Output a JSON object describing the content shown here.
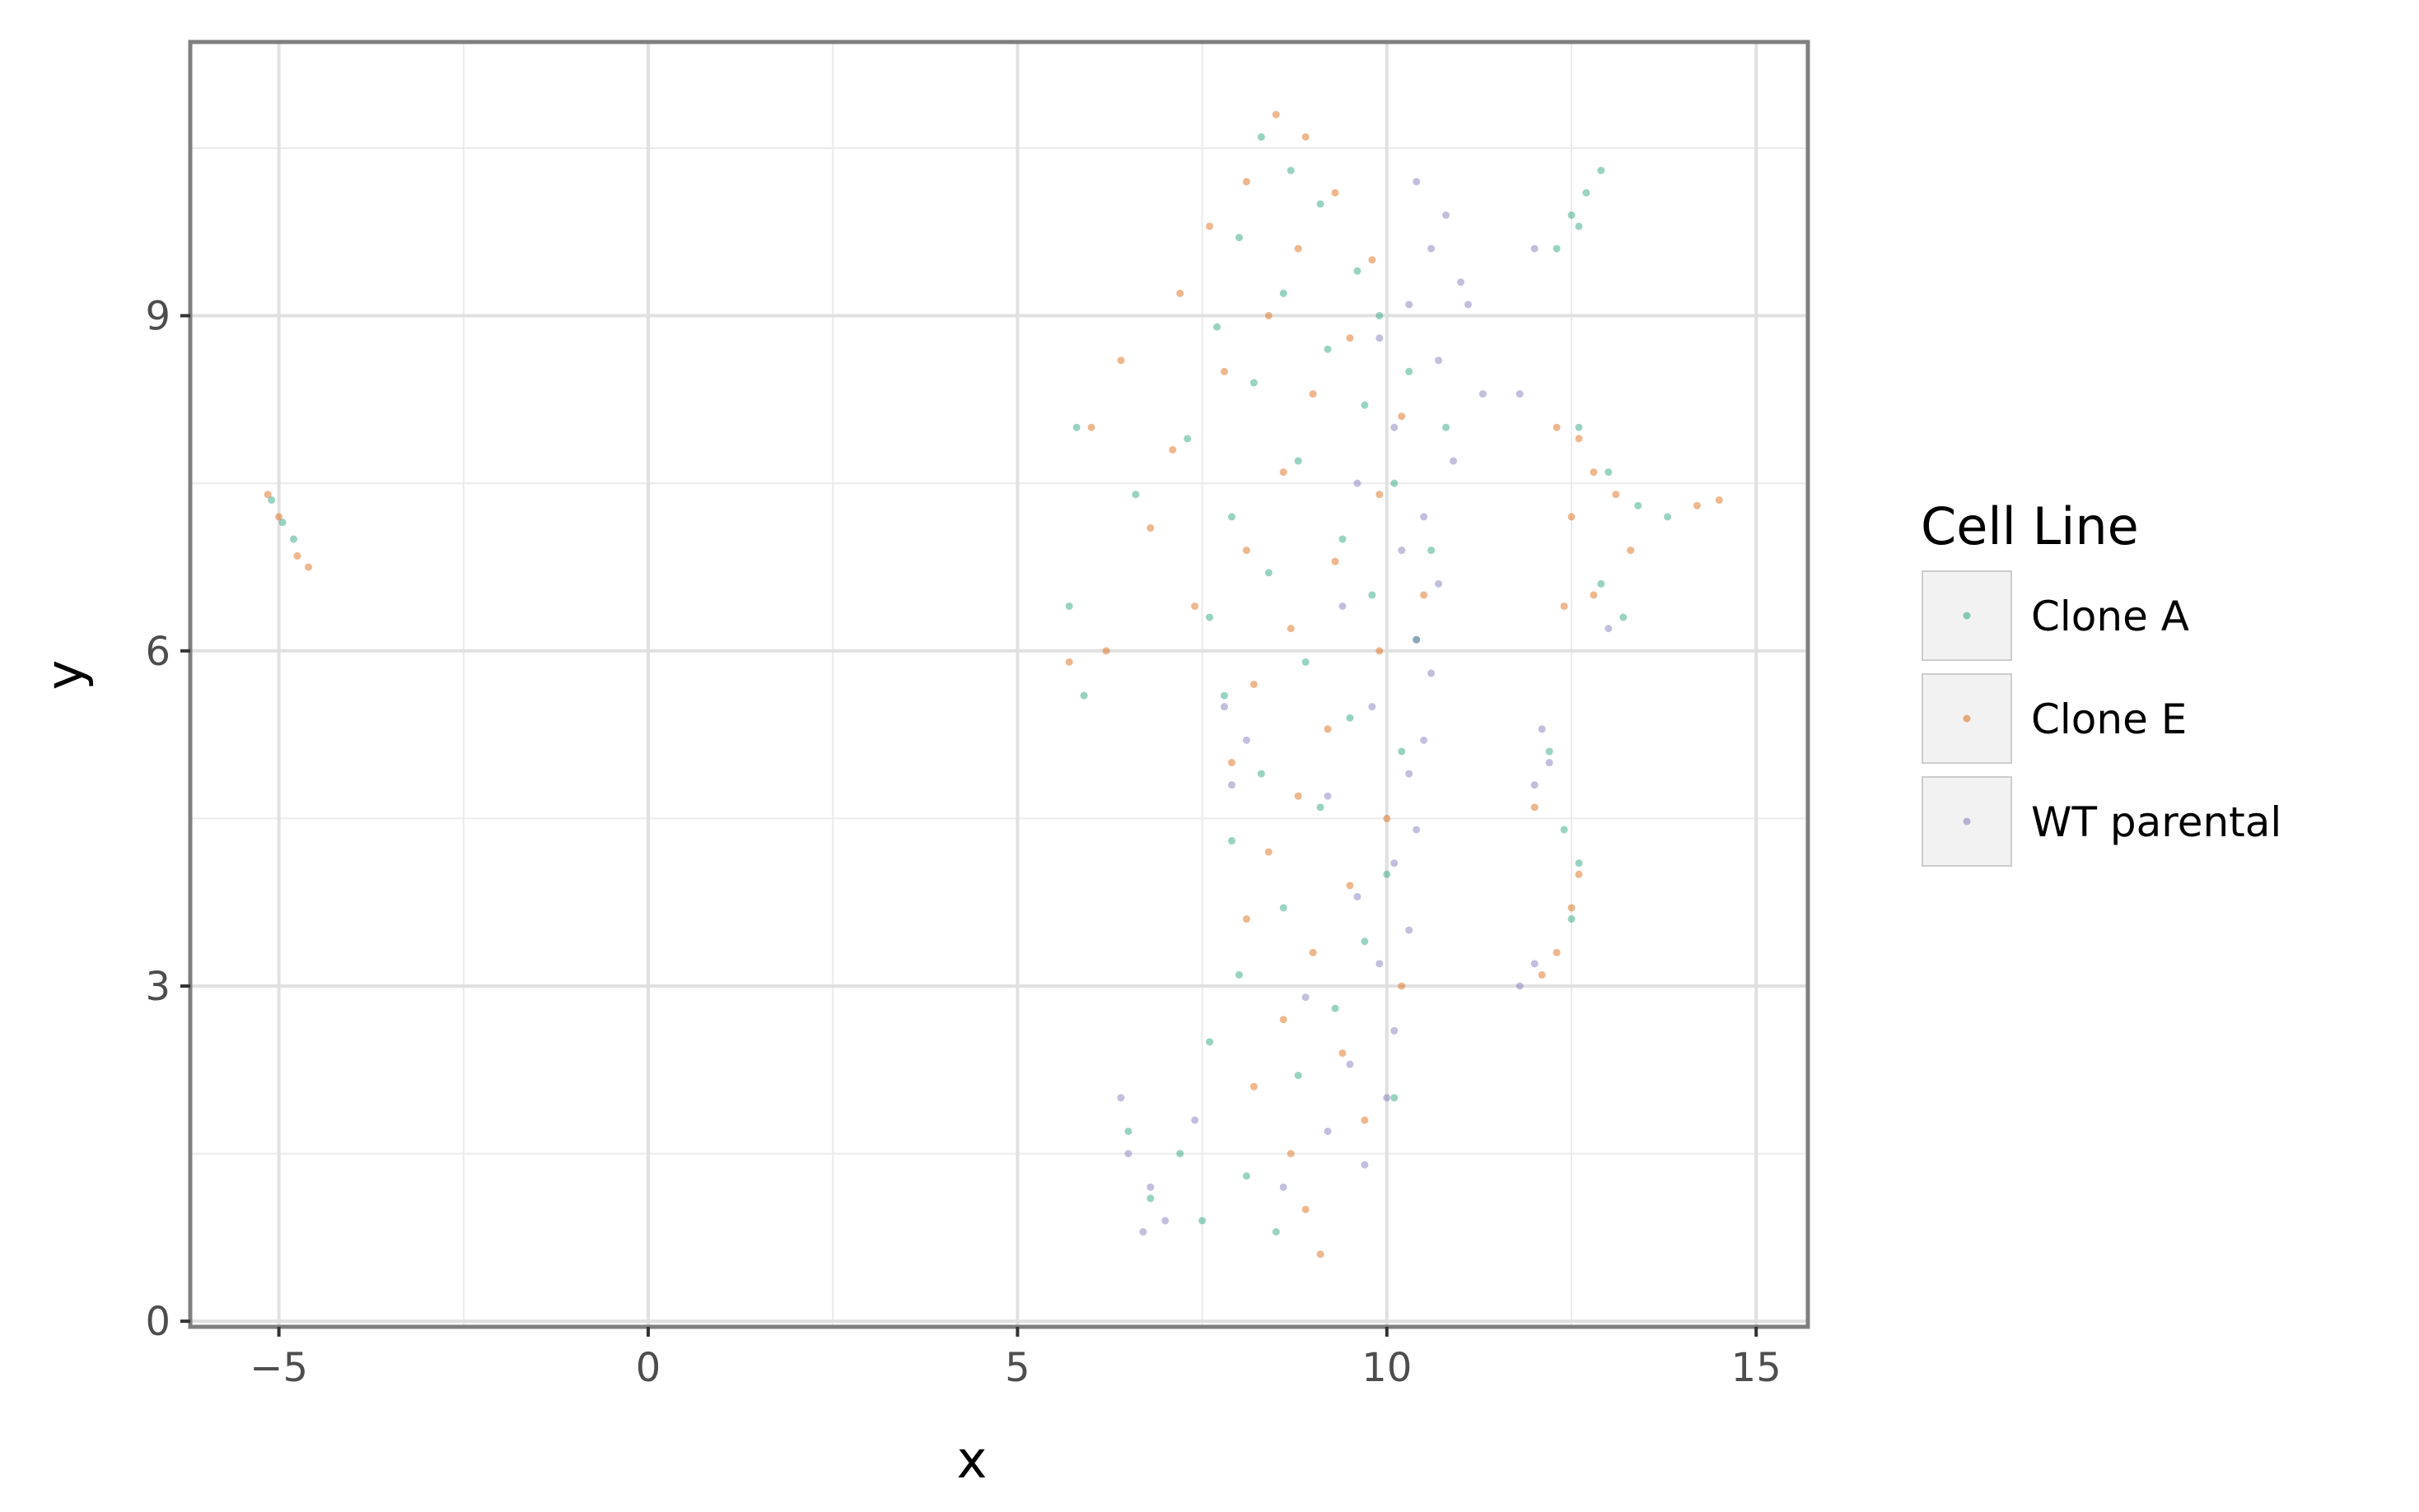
{
  "chart_data": {
    "type": "scatter",
    "title": "",
    "xlabel": "x",
    "ylabel": "y",
    "xlim": [
      -6.2,
      15.7
    ],
    "ylim": [
      -0.05,
      11.45
    ],
    "x_ticks": [
      -5,
      0,
      5,
      10,
      15
    ],
    "x_tick_labels": [
      "−5",
      "0",
      "5",
      "10",
      "15"
    ],
    "y_ticks": [
      0,
      3,
      6,
      9
    ],
    "y_tick_labels": [
      "0",
      "3",
      "6",
      "9"
    ],
    "grid": true,
    "legend": {
      "title": "Cell Line",
      "position": "right",
      "entries": [
        "Clone A",
        "Clone E",
        "WT parental"
      ]
    },
    "series": [
      {
        "name": "Clone A",
        "color": "#1b9e77",
        "points": [
          [
            -5.1,
            7.35
          ],
          [
            -4.95,
            7.15
          ],
          [
            -4.8,
            7.0
          ],
          [
            8.3,
            10.6
          ],
          [
            8.7,
            10.3
          ],
          [
            9.1,
            10.0
          ],
          [
            8.0,
            9.7
          ],
          [
            9.6,
            9.4
          ],
          [
            8.6,
            9.2
          ],
          [
            9.9,
            9.0
          ],
          [
            7.7,
            8.9
          ],
          [
            9.2,
            8.7
          ],
          [
            10.3,
            8.5
          ],
          [
            8.2,
            8.4
          ],
          [
            9.7,
            8.2
          ],
          [
            10.8,
            8.0
          ],
          [
            7.3,
            7.9
          ],
          [
            8.8,
            7.7
          ],
          [
            10.1,
            7.5
          ],
          [
            6.6,
            7.4
          ],
          [
            7.9,
            7.2
          ],
          [
            9.4,
            7.0
          ],
          [
            10.6,
            6.9
          ],
          [
            8.4,
            6.7
          ],
          [
            9.8,
            6.5
          ],
          [
            7.6,
            6.3
          ],
          [
            10.4,
            6.1
          ],
          [
            8.9,
            5.9
          ],
          [
            7.8,
            5.6
          ],
          [
            9.5,
            5.4
          ],
          [
            10.2,
            5.1
          ],
          [
            8.3,
            4.9
          ],
          [
            9.1,
            4.6
          ],
          [
            7.9,
            4.3
          ],
          [
            10.0,
            4.0
          ],
          [
            8.6,
            3.7
          ],
          [
            9.7,
            3.4
          ],
          [
            8.0,
            3.1
          ],
          [
            9.3,
            2.8
          ],
          [
            7.6,
            2.5
          ],
          [
            8.8,
            2.2
          ],
          [
            10.1,
            2.0
          ],
          [
            6.5,
            1.7
          ],
          [
            7.2,
            1.5
          ],
          [
            8.1,
            1.3
          ],
          [
            6.8,
            1.1
          ],
          [
            7.5,
            0.9
          ],
          [
            8.5,
            0.8
          ],
          [
            5.8,
            8.0
          ],
          [
            5.7,
            6.4
          ],
          [
            5.9,
            5.6
          ],
          [
            12.3,
            9.6
          ],
          [
            12.5,
            9.9
          ],
          [
            12.7,
            10.1
          ],
          [
            12.9,
            10.3
          ],
          [
            12.6,
            9.8
          ],
          [
            12.6,
            8.0
          ],
          [
            13.0,
            7.6
          ],
          [
            13.4,
            7.3
          ],
          [
            13.8,
            7.2
          ],
          [
            12.9,
            6.6
          ],
          [
            13.2,
            6.3
          ],
          [
            12.4,
            4.4
          ],
          [
            12.6,
            4.1
          ],
          [
            12.2,
            5.1
          ],
          [
            12.5,
            3.6
          ]
        ]
      },
      {
        "name": "Clone E",
        "color": "#d95f02",
        "points": [
          [
            -5.15,
            7.4
          ],
          [
            -5.0,
            7.2
          ],
          [
            -4.75,
            6.85
          ],
          [
            -4.6,
            6.75
          ],
          [
            8.5,
            10.8
          ],
          [
            8.9,
            10.6
          ],
          [
            8.1,
            10.2
          ],
          [
            9.3,
            10.1
          ],
          [
            7.6,
            9.8
          ],
          [
            8.8,
            9.6
          ],
          [
            9.8,
            9.5
          ],
          [
            7.2,
            9.2
          ],
          [
            8.4,
            9.0
          ],
          [
            9.5,
            8.8
          ],
          [
            6.4,
            8.6
          ],
          [
            7.8,
            8.5
          ],
          [
            9.0,
            8.3
          ],
          [
            10.2,
            8.1
          ],
          [
            6.0,
            8.0
          ],
          [
            7.1,
            7.8
          ],
          [
            8.6,
            7.6
          ],
          [
            9.9,
            7.4
          ],
          [
            6.8,
            7.1
          ],
          [
            8.1,
            6.9
          ],
          [
            9.3,
            6.8
          ],
          [
            10.5,
            6.5
          ],
          [
            7.4,
            6.4
          ],
          [
            8.7,
            6.2
          ],
          [
            9.9,
            6.0
          ],
          [
            5.7,
            5.9
          ],
          [
            6.2,
            6.0
          ],
          [
            8.2,
            5.7
          ],
          [
            9.2,
            5.3
          ],
          [
            7.9,
            5.0
          ],
          [
            8.8,
            4.7
          ],
          [
            10.0,
            4.5
          ],
          [
            8.4,
            4.2
          ],
          [
            9.5,
            3.9
          ],
          [
            8.1,
            3.6
          ],
          [
            9.0,
            3.3
          ],
          [
            10.2,
            3.0
          ],
          [
            8.6,
            2.7
          ],
          [
            9.4,
            2.4
          ],
          [
            8.2,
            2.1
          ],
          [
            9.7,
            1.8
          ],
          [
            8.9,
            1.0
          ],
          [
            9.1,
            0.6
          ],
          [
            8.7,
            1.5
          ],
          [
            12.3,
            8.0
          ],
          [
            12.6,
            7.9
          ],
          [
            12.8,
            7.6
          ],
          [
            13.1,
            7.4
          ],
          [
            12.5,
            7.2
          ],
          [
            13.3,
            6.9
          ],
          [
            12.8,
            6.5
          ],
          [
            12.4,
            6.4
          ],
          [
            14.2,
            7.3
          ],
          [
            14.5,
            7.35
          ],
          [
            12.3,
            3.3
          ],
          [
            12.5,
            3.7
          ],
          [
            12.1,
            3.1
          ],
          [
            12.6,
            4.0
          ],
          [
            12.0,
            4.6
          ]
        ]
      },
      {
        "name": "WT parental",
        "color": "#7570b3",
        "points": [
          [
            10.4,
            10.2
          ],
          [
            10.8,
            9.9
          ],
          [
            10.6,
            9.6
          ],
          [
            11.0,
            9.3
          ],
          [
            10.3,
            9.1
          ],
          [
            9.9,
            8.8
          ],
          [
            10.7,
            8.6
          ],
          [
            11.3,
            8.3
          ],
          [
            10.1,
            8.0
          ],
          [
            10.9,
            7.7
          ],
          [
            9.6,
            7.5
          ],
          [
            10.5,
            7.2
          ],
          [
            10.2,
            6.9
          ],
          [
            10.7,
            6.6
          ],
          [
            9.4,
            6.4
          ],
          [
            10.4,
            6.1
          ],
          [
            10.6,
            5.8
          ],
          [
            9.8,
            5.5
          ],
          [
            10.5,
            5.2
          ],
          [
            10.3,
            4.9
          ],
          [
            9.2,
            4.7
          ],
          [
            10.4,
            4.4
          ],
          [
            10.1,
            4.1
          ],
          [
            9.6,
            3.8
          ],
          [
            10.3,
            3.5
          ],
          [
            9.9,
            3.2
          ],
          [
            8.9,
            2.9
          ],
          [
            10.1,
            2.6
          ],
          [
            9.5,
            2.3
          ],
          [
            10.0,
            2.0
          ],
          [
            9.2,
            1.7
          ],
          [
            9.7,
            1.4
          ],
          [
            8.6,
            1.2
          ],
          [
            6.5,
            1.5
          ],
          [
            6.8,
            1.2
          ],
          [
            7.0,
            0.9
          ],
          [
            6.7,
            0.8
          ],
          [
            7.4,
            1.8
          ],
          [
            6.4,
            2.0
          ],
          [
            7.8,
            5.5
          ],
          [
            8.1,
            5.2
          ],
          [
            7.9,
            4.8
          ],
          [
            11.8,
            8.3
          ],
          [
            12.0,
            9.6
          ],
          [
            11.1,
            9.1
          ],
          [
            12.1,
            5.3
          ],
          [
            12.2,
            5.0
          ],
          [
            12.0,
            4.8
          ],
          [
            11.8,
            3.0
          ],
          [
            12.0,
            3.2
          ],
          [
            13.0,
            6.2
          ]
        ]
      }
    ]
  }
}
